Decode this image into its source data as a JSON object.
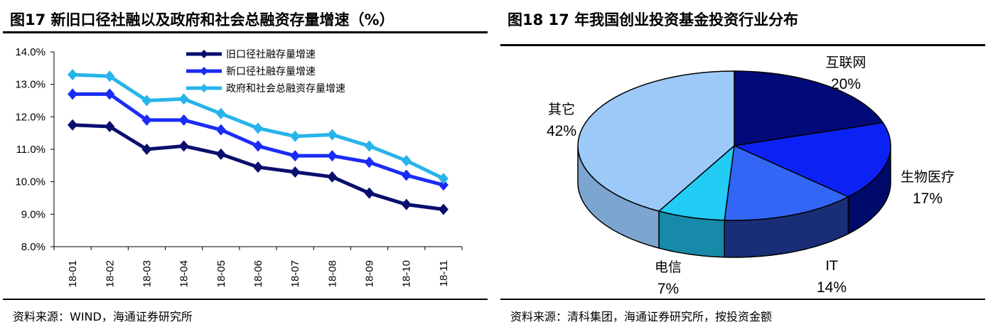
{
  "left": {
    "title": "图17 新旧口径社融以及政府和社会总融资存量增速（%）",
    "source": "资料来源：WIND，海通证券研究所"
  },
  "right": {
    "title": "图18 17 年我国创业投资基金投资行业分布",
    "source": "资料来源：清科集团，海通证券研究所，按投资金额"
  },
  "chart_data": [
    {
      "type": "line",
      "title": "新旧口径社融以及政府和社会总融资存量增速（%）",
      "categories": [
        "18-01",
        "18-02",
        "18-03",
        "18-04",
        "18-05",
        "18-06",
        "18-07",
        "18-08",
        "18-09",
        "18-10",
        "18-11"
      ],
      "yticks": [
        "8.0%",
        "9.0%",
        "10.0%",
        "11.0%",
        "12.0%",
        "13.0%",
        "14.0%"
      ],
      "ylim": [
        8,
        14
      ],
      "legend_position": "top-center",
      "series": [
        {
          "name": "旧口径社融存量增速",
          "color": "#0a0f6e",
          "values": [
            11.75,
            11.7,
            11.0,
            11.1,
            10.85,
            10.45,
            10.3,
            10.15,
            9.65,
            9.3,
            9.15
          ]
        },
        {
          "name": "新口径社融存量增速",
          "color": "#1a2cf5",
          "values": [
            12.7,
            12.7,
            11.9,
            11.9,
            11.6,
            11.1,
            10.8,
            10.8,
            10.6,
            10.2,
            9.9
          ]
        },
        {
          "name": "政府和社会总融资存量增速",
          "color": "#27b4ea",
          "values": [
            13.3,
            13.25,
            12.5,
            12.55,
            12.1,
            11.65,
            11.4,
            11.45,
            11.1,
            10.65,
            10.1
          ]
        }
      ]
    },
    {
      "type": "pie",
      "title": "17 年我国创业投资基金投资行业分布",
      "slices": [
        {
          "label": "互联网",
          "value": 20,
          "pct": "20%",
          "color": "#020a7a",
          "side": "#010650"
        },
        {
          "label": "生物医疗",
          "value": 17,
          "pct": "17%",
          "color": "#0c22f5",
          "side": "#000a6a"
        },
        {
          "label": "IT",
          "value": 14,
          "pct": "14%",
          "color": "#3366f5",
          "side": "#1a2e78"
        },
        {
          "label": "电信",
          "value": 7,
          "pct": "7%",
          "color": "#22ccf5",
          "side": "#168aa8"
        },
        {
          "label": "其它",
          "value": 42,
          "pct": "42%",
          "color": "#9cc9f8",
          "side": "#7ca6cf"
        }
      ]
    }
  ]
}
